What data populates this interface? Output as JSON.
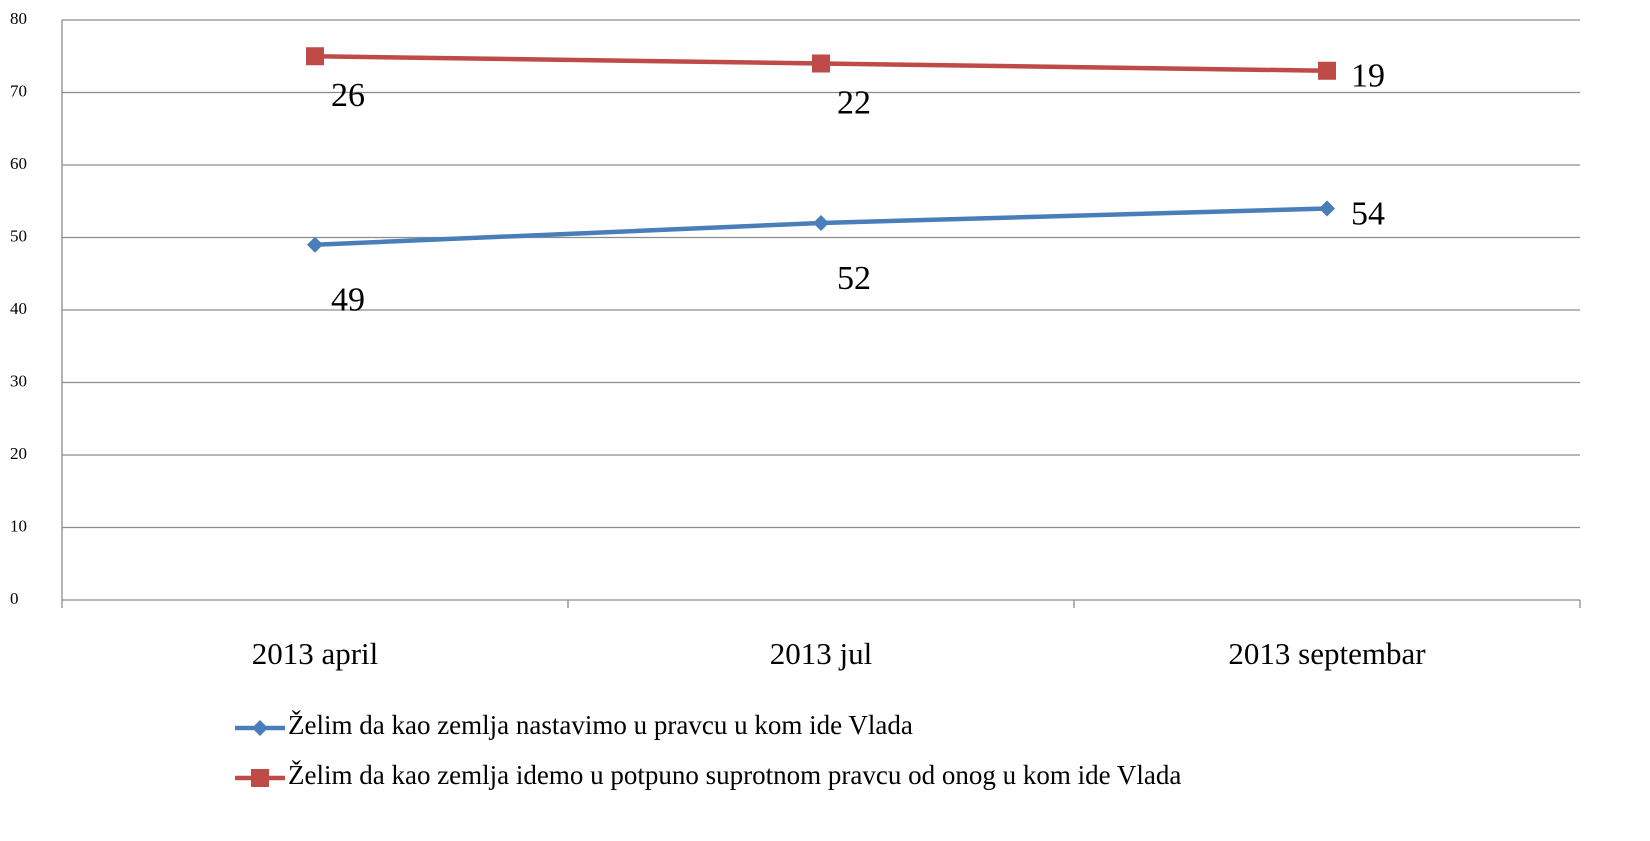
{
  "chart_data": {
    "type": "line",
    "stacked": true,
    "categories": [
      "2013 april",
      "2013 jul",
      "2013 septembar"
    ],
    "series": [
      {
        "name": "Želim da kao zemlja nastavimo u pravcu u kom ide Vlada",
        "color": "#4a7ebb",
        "marker": "diamond",
        "values": [
          49,
          52,
          54
        ]
      },
      {
        "name": "Želim da kao zemlja idemo u potpuno suprotnom pravcu od onog u kom ide Vlada",
        "color": "#be4b48",
        "marker": "square",
        "values": [
          26,
          22,
          19
        ]
      }
    ],
    "ylim": [
      0,
      80
    ],
    "yticks": [
      0,
      10,
      20,
      30,
      40,
      50,
      60,
      70,
      80
    ],
    "grid": true,
    "legend": "bottom"
  }
}
